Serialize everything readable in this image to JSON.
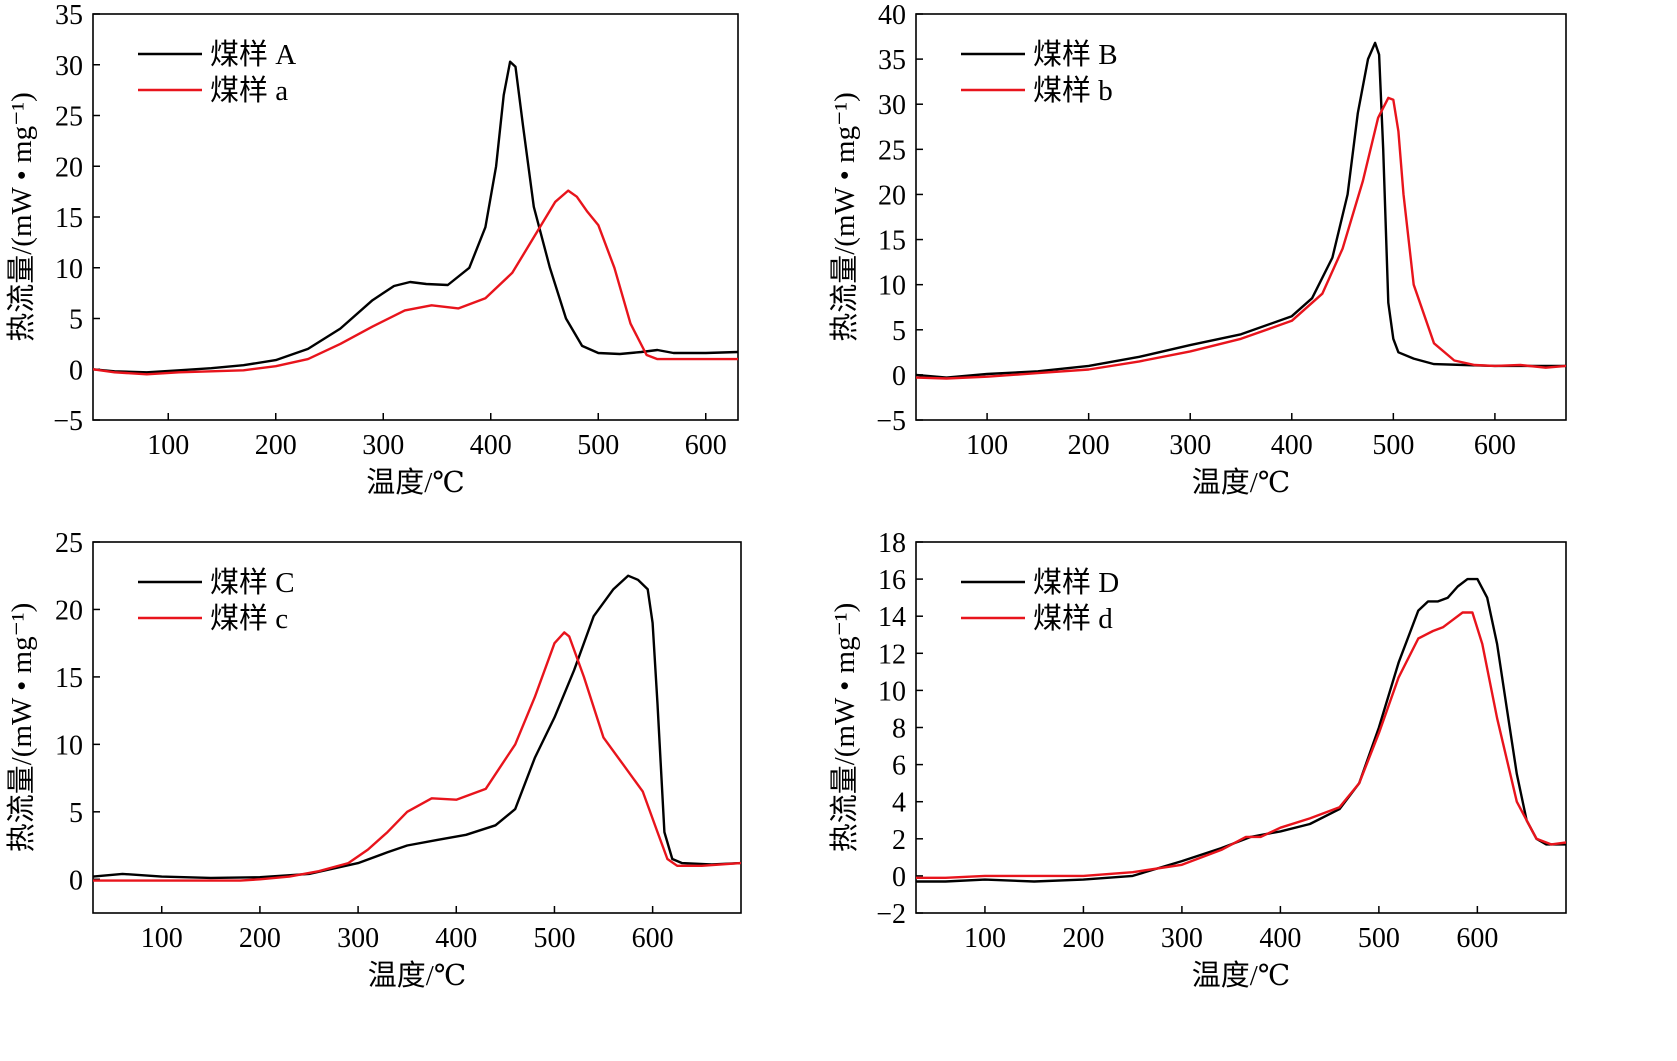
{
  "chart_data": [
    {
      "type": "line",
      "xlabel": "温度/℃",
      "ylabel": "热流量/(mW • mg⁻¹)",
      "xlim": [
        30,
        630
      ],
      "ylim": [
        -5,
        35
      ],
      "xticks": [
        100,
        200,
        300,
        400,
        500,
        600
      ],
      "yticks": [
        -5,
        0,
        5,
        10,
        15,
        20,
        25,
        30,
        35
      ],
      "legend": "top-left",
      "series": [
        {
          "name": "煤样 A",
          "color": "#000000",
          "x": [
            30,
            50,
            80,
            110,
            140,
            170,
            200,
            230,
            260,
            290,
            310,
            325,
            340,
            360,
            380,
            395,
            405,
            412,
            418,
            423,
            430,
            440,
            455,
            470,
            485,
            500,
            520,
            540,
            555,
            570,
            600,
            630
          ],
          "y": [
            0,
            -0.2,
            -0.3,
            -0.1,
            0.1,
            0.4,
            0.9,
            2,
            4,
            6.8,
            8.2,
            8.6,
            8.4,
            8.3,
            10,
            14,
            20,
            27,
            30.3,
            29.8,
            24,
            16,
            10,
            5,
            2.3,
            1.6,
            1.5,
            1.7,
            1.9,
            1.6,
            1.6,
            1.7
          ]
        },
        {
          "name": "煤样 a",
          "color": "#e8141c",
          "x": [
            30,
            50,
            80,
            110,
            140,
            170,
            200,
            230,
            260,
            290,
            320,
            345,
            370,
            395,
            420,
            440,
            460,
            472,
            480,
            490,
            500,
            515,
            530,
            545,
            555,
            570,
            600,
            630
          ],
          "y": [
            0,
            -0.3,
            -0.5,
            -0.3,
            -0.2,
            -0.1,
            0.3,
            1,
            2.5,
            4.2,
            5.8,
            6.3,
            6,
            7,
            9.5,
            13,
            16.5,
            17.6,
            17,
            15.5,
            14.2,
            10,
            4.5,
            1.4,
            1,
            1,
            1,
            1
          ]
        }
      ]
    },
    {
      "type": "line",
      "xlabel": "温度/℃",
      "ylabel": "热流量/(mW • mg⁻¹)",
      "xlim": [
        30,
        670
      ],
      "ylim": [
        -5,
        40
      ],
      "xticks": [
        100,
        200,
        300,
        400,
        500,
        600
      ],
      "yticks": [
        -5,
        0,
        5,
        10,
        15,
        20,
        25,
        30,
        35,
        40
      ],
      "legend": "top-left",
      "series": [
        {
          "name": "煤样 B",
          "color": "#000000",
          "x": [
            30,
            60,
            100,
            150,
            200,
            250,
            300,
            350,
            400,
            420,
            440,
            455,
            465,
            475,
            482,
            486,
            490,
            495,
            500,
            505,
            520,
            540,
            570,
            600,
            630,
            670
          ],
          "y": [
            0,
            -0.3,
            0.1,
            0.4,
            1,
            2,
            3.3,
            4.5,
            6.5,
            8.5,
            13,
            20,
            29,
            35,
            36.8,
            35.5,
            25,
            8,
            4,
            2.5,
            1.8,
            1.2,
            1.1,
            1,
            1,
            1
          ]
        },
        {
          "name": "煤样 b",
          "color": "#e8141c",
          "x": [
            30,
            60,
            100,
            150,
            200,
            250,
            300,
            350,
            400,
            430,
            450,
            470,
            485,
            495,
            500,
            505,
            510,
            520,
            540,
            560,
            580,
            600,
            625,
            650,
            670
          ],
          "y": [
            -0.3,
            -0.4,
            -0.2,
            0.2,
            0.6,
            1.5,
            2.6,
            4,
            6,
            9,
            14,
            21.5,
            28.5,
            30.7,
            30.5,
            27,
            20,
            10,
            3.5,
            1.6,
            1.1,
            1,
            1.1,
            0.8,
            1
          ]
        }
      ]
    },
    {
      "type": "line",
      "xlabel": "温度/℃",
      "ylabel": "热流量/(mW • mg⁻¹)",
      "xlim": [
        30,
        690
      ],
      "ylim": [
        -2.5,
        25
      ],
      "xticks": [
        100,
        200,
        300,
        400,
        500,
        600
      ],
      "yticks": [
        0,
        5,
        10,
        15,
        20,
        25
      ],
      "legend": "top-left",
      "series": [
        {
          "name": "煤样 C",
          "color": "#000000",
          "x": [
            30,
            60,
            100,
            150,
            200,
            250,
            300,
            330,
            350,
            380,
            410,
            440,
            460,
            480,
            500,
            520,
            540,
            560,
            575,
            585,
            595,
            600,
            605,
            612,
            620,
            630,
            660,
            690
          ],
          "y": [
            0.2,
            0.4,
            0.2,
            0.1,
            0.15,
            0.4,
            1.2,
            2,
            2.5,
            2.9,
            3.3,
            4,
            5.2,
            9,
            12,
            15.5,
            19.5,
            21.5,
            22.5,
            22.2,
            21.5,
            19,
            13,
            3.5,
            1.5,
            1.2,
            1.1,
            1.2
          ]
        },
        {
          "name": "煤样 c",
          "color": "#e8141c",
          "x": [
            30,
            60,
            100,
            150,
            180,
            200,
            230,
            260,
            290,
            310,
            330,
            350,
            375,
            400,
            430,
            460,
            480,
            500,
            510,
            515,
            530,
            550,
            570,
            590,
            605,
            615,
            625,
            650,
            690
          ],
          "y": [
            -0.1,
            -0.1,
            -0.1,
            -0.1,
            -0.1,
            0,
            0.2,
            0.6,
            1.2,
            2.2,
            3.5,
            5,
            6,
            5.9,
            6.7,
            10,
            13.5,
            17.5,
            18.3,
            18,
            15,
            10.5,
            8.5,
            6.5,
            3.5,
            1.5,
            1,
            1,
            1.2
          ]
        }
      ]
    },
    {
      "type": "line",
      "xlabel": "温度/℃",
      "ylabel": "热流量/(mW • mg⁻¹)",
      "xlim": [
        30,
        690
      ],
      "ylim": [
        -2,
        18
      ],
      "xticks": [
        100,
        200,
        300,
        400,
        500,
        600
      ],
      "yticks": [
        -2,
        0,
        2,
        4,
        6,
        8,
        10,
        12,
        14,
        16,
        18
      ],
      "legend": "top-left",
      "series": [
        {
          "name": "煤样 D",
          "color": "#000000",
          "x": [
            30,
            60,
            100,
            150,
            200,
            250,
            300,
            340,
            370,
            400,
            430,
            460,
            480,
            500,
            520,
            540,
            550,
            560,
            570,
            580,
            590,
            600,
            610,
            620,
            630,
            640,
            650,
            660,
            670,
            690
          ],
          "y": [
            -0.3,
            -0.3,
            -0.2,
            -0.3,
            -0.2,
            0,
            0.8,
            1.5,
            2.1,
            2.4,
            2.8,
            3.6,
            5,
            8,
            11.5,
            14.3,
            14.8,
            14.8,
            15,
            15.6,
            16,
            16,
            15,
            12.5,
            9,
            5.5,
            3,
            2,
            1.7,
            1.7
          ]
        },
        {
          "name": "煤样 d",
          "color": "#e8141c",
          "x": [
            30,
            60,
            100,
            150,
            200,
            250,
            300,
            340,
            365,
            380,
            400,
            430,
            460,
            480,
            500,
            520,
            540,
            555,
            565,
            575,
            585,
            595,
            605,
            620,
            640,
            660,
            675,
            690
          ],
          "y": [
            -0.1,
            -0.1,
            0,
            0,
            0,
            0.2,
            0.6,
            1.4,
            2.1,
            2.1,
            2.6,
            3.1,
            3.7,
            5,
            7.7,
            10.7,
            12.8,
            13.2,
            13.4,
            13.8,
            14.2,
            14.2,
            12.5,
            8.5,
            4,
            2,
            1.7,
            1.8
          ]
        }
      ]
    }
  ]
}
